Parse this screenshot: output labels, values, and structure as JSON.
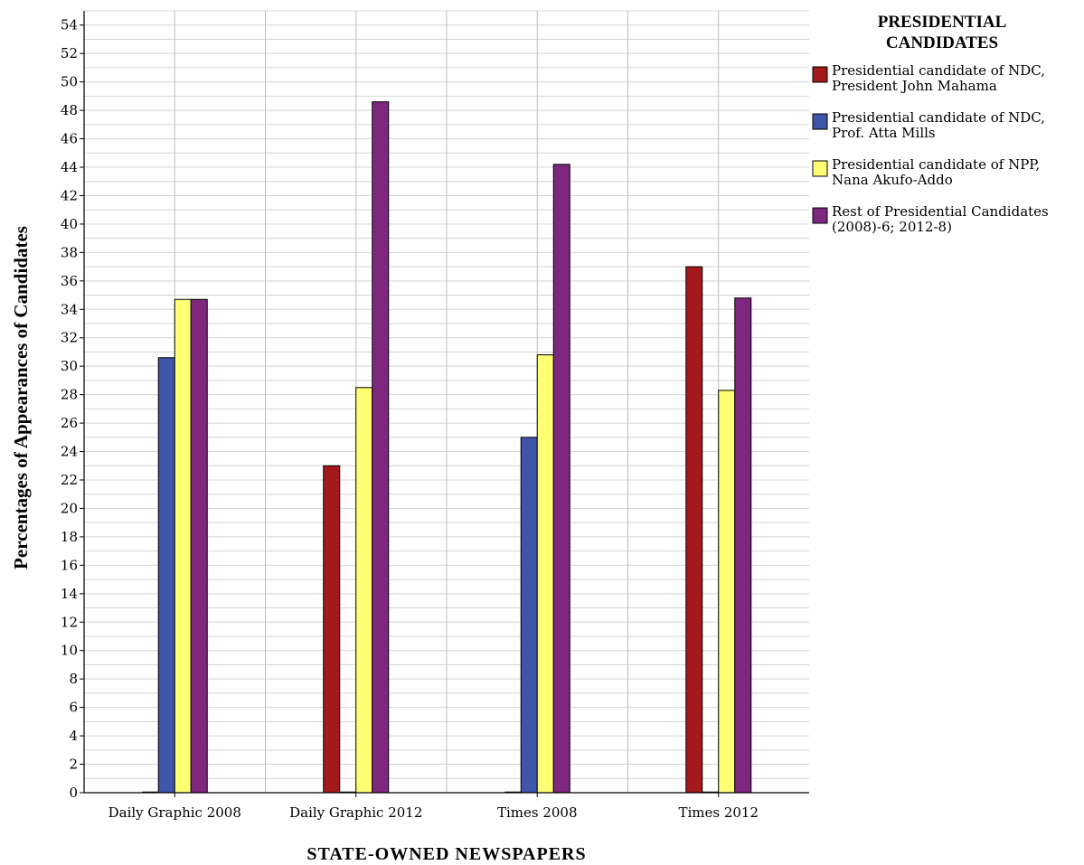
{
  "chart_data": {
    "type": "bar",
    "xlabel": "STATE-OWNED NEWSPAPERS",
    "ylabel": "Percentages of Appearances of Candidates",
    "ylim": [
      0,
      55
    ],
    "ytick_step": 2,
    "grid": true,
    "legend": {
      "title_lines": [
        "PRESIDENTIAL",
        "CANDIDATES"
      ],
      "placement": "right"
    },
    "categories": [
      "Daily Graphic 2008",
      "Daily Graphic 2012",
      "Times 2008",
      "Times 2012"
    ],
    "series": [
      {
        "name_lines": [
          "Presidential candidate of NDC,",
          "President John Mahama"
        ],
        "color": "#a4191c",
        "values": [
          0,
          23,
          0,
          37
        ]
      },
      {
        "name_lines": [
          "Presidential candidate of NDC,",
          "Prof. Atta Mills"
        ],
        "color": "#3f55a9",
        "values": [
          30.6,
          0,
          25,
          0
        ]
      },
      {
        "name_lines": [
          "Presidential candidate of NPP,",
          "Nana Akufo-Addo"
        ],
        "color": "#ffff73",
        "values": [
          34.7,
          28.5,
          30.8,
          28.3
        ]
      },
      {
        "name_lines": [
          "Rest of Presidential Candidates",
          "(2008)-6; 2012-8)"
        ],
        "color": "#7e277f",
        "values": [
          34.7,
          48.6,
          44.2,
          34.8
        ]
      }
    ]
  }
}
